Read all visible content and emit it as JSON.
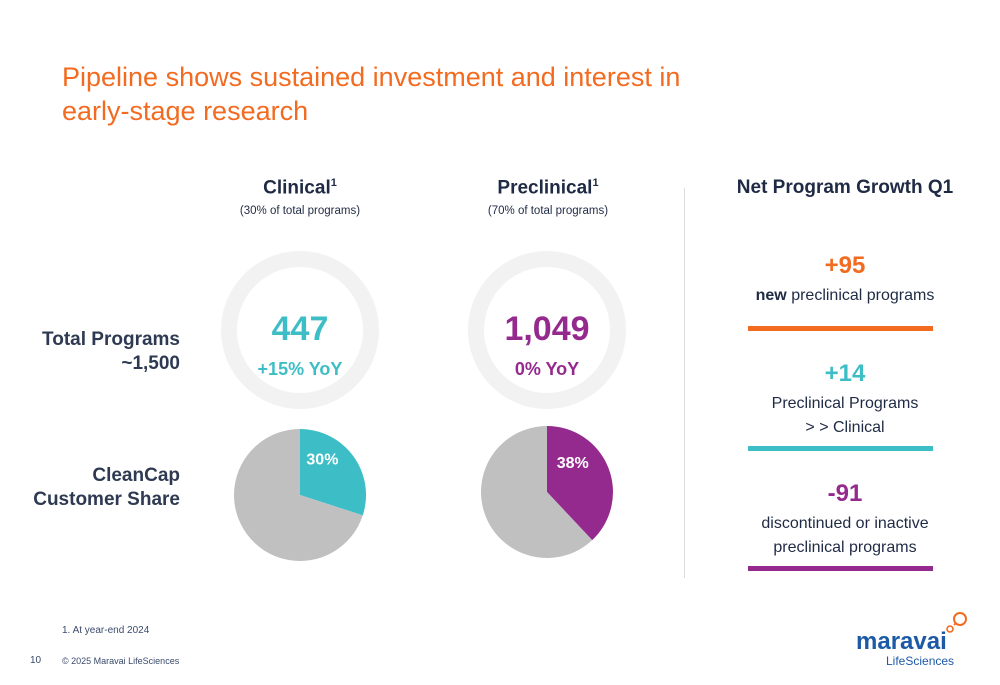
{
  "title": "Pipeline shows sustained investment and interest in early-stage research",
  "columns": [
    {
      "heading": "Clinical",
      "sup": "1",
      "sub": "(30% of total programs)",
      "total": "447",
      "yoy": "+15% YoY",
      "share_label": "30%",
      "color": "#3dbec6"
    },
    {
      "heading": "Preclinical",
      "sup": "1",
      "sub": "(70% of total programs)",
      "total": "1,049",
      "yoy": "0% YoY",
      "share_label": "38%",
      "color": "#952a8e"
    }
  ],
  "row_labels": {
    "total_programs": "Total Programs",
    "total_value": "~1,500",
    "cleancap_1": "CleanCap",
    "cleancap_2": "Customer Share"
  },
  "net_growth": {
    "title": "Net Program Growth Q1",
    "items": [
      {
        "value": "+95",
        "desc_bold": "new",
        "desc_rest": " preclinical programs",
        "desc2": "",
        "color": "#f26b21"
      },
      {
        "value": "+14",
        "desc_bold": "",
        "desc_rest": "Preclinical Programs",
        "desc2": "> > Clinical",
        "color": "#3dbec6"
      },
      {
        "value": "-91",
        "desc_bold": "",
        "desc_rest": "discontinued or inactive",
        "desc2": "preclinical programs",
        "color": "#952a8e"
      }
    ]
  },
  "footnote": "1.   At year-end 2024",
  "page_number": "10",
  "copyright": "© 2025 Maravai LifeSciences",
  "logo": {
    "name": "maravai",
    "sub": "LifeSciences",
    "color": "#1d5aa6",
    "accent": "#f26b21"
  },
  "chart_data": [
    {
      "type": "pie",
      "title": "Clinical CleanCap Customer Share",
      "series": [
        {
          "values": [
            30,
            70
          ]
        }
      ],
      "labels": [
        "30%",
        ""
      ],
      "colors": [
        "#3dbec6",
        "#c0c0c0"
      ]
    },
    {
      "type": "pie",
      "title": "Preclinical CleanCap Customer Share",
      "series": [
        {
          "values": [
            38,
            62
          ]
        }
      ],
      "labels": [
        "38%",
        ""
      ],
      "colors": [
        "#952a8e",
        "#c0c0c0"
      ]
    }
  ]
}
